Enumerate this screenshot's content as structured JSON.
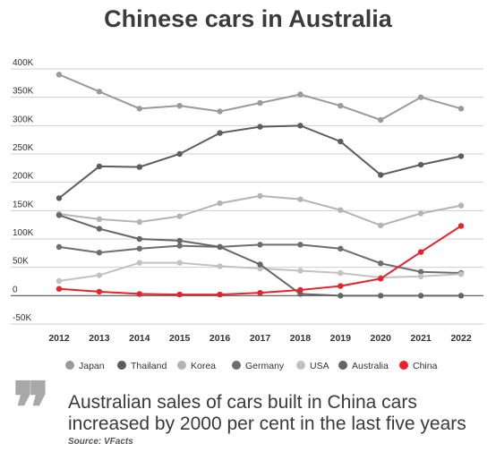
{
  "title": "Chinese cars in Australia",
  "caption": "Australian sales of cars built in China cars increased by 2000 per cent in the last five years",
  "source": "Source: VFacts",
  "chart_data": {
    "type": "line",
    "title": "Chinese cars in Australia",
    "xlabel": "",
    "ylabel": "",
    "x": [
      "2012",
      "2013",
      "2014",
      "2015",
      "2016",
      "2017",
      "2018",
      "2019",
      "2020",
      "2021",
      "2022"
    ],
    "yticks": [
      "-50K",
      "0",
      "50K",
      "100K",
      "150K",
      "200K",
      "250K",
      "300K",
      "350K",
      "400K"
    ],
    "ylim": [
      -50000,
      400000
    ],
    "grid": true,
    "legend_position": "bottom",
    "series": [
      {
        "name": "Japan",
        "color": "#9a9a9a",
        "values": [
          390000,
          360000,
          330000,
          335000,
          325000,
          340000,
          355000,
          335000,
          310000,
          350000,
          330000
        ]
      },
      {
        "name": "Thailand",
        "color": "#5d5d5d",
        "values": [
          172000,
          228000,
          227000,
          250000,
          287000,
          298000,
          300000,
          272000,
          213000,
          231000,
          246000
        ]
      },
      {
        "name": "Korea",
        "color": "#b4b4b4",
        "values": [
          144000,
          135000,
          130000,
          140000,
          163000,
          176000,
          170000,
          151000,
          124000,
          145000,
          159000
        ]
      },
      {
        "name": "Germany",
        "color": "#6e6e6e",
        "values": [
          86000,
          76000,
          83000,
          88000,
          86000,
          90000,
          90000,
          83000,
          57000,
          42000,
          40000
        ]
      },
      {
        "name": "USA",
        "color": "#c2c2c2",
        "values": [
          26000,
          36000,
          58000,
          58000,
          52000,
          48000,
          44000,
          40000,
          32000,
          34000,
          38000
        ]
      },
      {
        "name": "Australia",
        "color": "#666666",
        "values": [
          142000,
          118000,
          100000,
          97000,
          86000,
          55000,
          3000,
          0,
          0,
          0,
          0
        ]
      },
      {
        "name": "China",
        "color": "#e8212a",
        "values": [
          12000,
          7000,
          3000,
          2000,
          2000,
          5000,
          10000,
          17000,
          30000,
          77000,
          123000
        ]
      }
    ]
  }
}
